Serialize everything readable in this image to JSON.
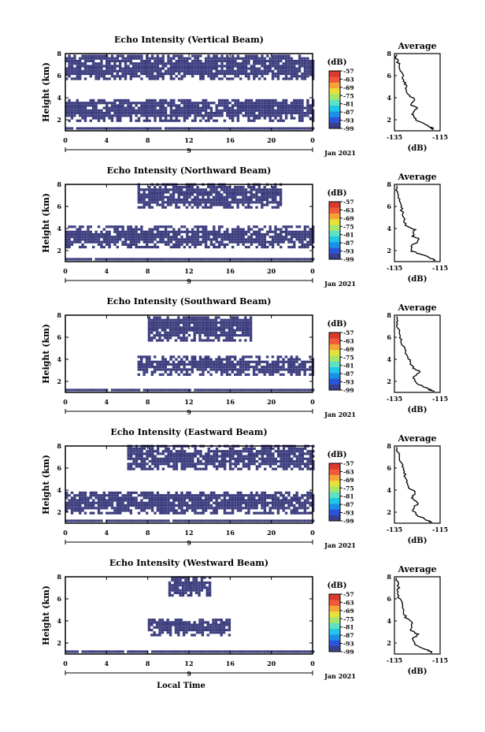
{
  "chart_data": {
    "type": "heatmap",
    "shared": {
      "x_ticks": [
        "0",
        "4",
        "8",
        "12",
        "16",
        "20",
        "0"
      ],
      "x_day_label": "9",
      "date_label": "Jan 2021",
      "xlabel": "Local Time",
      "ylabel": "Height (km)",
      "y_ticks": [
        "2",
        "4",
        "6",
        "8"
      ],
      "ylim": [
        1,
        8
      ],
      "colorbar_unit": "(dB)",
      "colorbar_ticks": [
        "-57",
        "-63",
        "-69",
        "-75",
        "-81",
        "-87",
        "-93",
        "-99"
      ],
      "avg_title": "Average",
      "avg_xlabel": "(dB)",
      "avg_x_ticks": [
        "-135",
        "-115"
      ],
      "avg_xlim": [
        -135,
        -115
      ],
      "avg_y_ticks": [
        "2",
        "4",
        "6",
        "8"
      ]
    },
    "panels": [
      {
        "title": "Echo Intensity (Vertical Beam)",
        "bands": [
          {
            "x0": 0,
            "x1": 24,
            "h0": 1.1,
            "h1": 1.3
          },
          {
            "x0": 0,
            "x1": 24,
            "h0": 1.8,
            "h1": 3.8
          },
          {
            "x0": 0,
            "x1": 24,
            "h0": 5.6,
            "h1": 7.9
          }
        ],
        "avg_profile": [
          [
            -118,
            1.1
          ],
          [
            -119,
            1.3
          ],
          [
            -122,
            1.6
          ],
          [
            -126,
            2.1
          ],
          [
            -127,
            2.6
          ],
          [
            -125,
            3.1
          ],
          [
            -128,
            3.4
          ],
          [
            -126,
            3.8
          ],
          [
            -129,
            4.3
          ],
          [
            -130,
            5.0
          ],
          [
            -131,
            5.6
          ],
          [
            -132,
            6.3
          ],
          [
            -133,
            7.0
          ],
          [
            -134,
            7.5
          ],
          [
            -134,
            7.9
          ]
        ]
      },
      {
        "title": "Echo Intensity (Northward Beam)",
        "bands": [
          {
            "x0": 0,
            "x1": 24,
            "h0": 1.1,
            "h1": 1.3
          },
          {
            "x0": 0,
            "x1": 24,
            "h0": 2.2,
            "h1": 4.1
          },
          {
            "x0": 7,
            "x1": 21,
            "h0": 5.8,
            "h1": 7.9
          }
        ],
        "avg_profile": [
          [
            -117,
            1.1
          ],
          [
            -119,
            1.3
          ],
          [
            -124,
            1.7
          ],
          [
            -128,
            2.0
          ],
          [
            -127,
            2.5
          ],
          [
            -124,
            3.0
          ],
          [
            -127,
            3.3
          ],
          [
            -126,
            3.9
          ],
          [
            -130,
            4.3
          ],
          [
            -131,
            5.0
          ],
          [
            -132,
            5.8
          ],
          [
            -133,
            6.5
          ],
          [
            -134,
            7.2
          ],
          [
            -134,
            7.9
          ]
        ]
      },
      {
        "title": "Echo Intensity (Southward Beam)",
        "bands": [
          {
            "x0": 0,
            "x1": 24,
            "h0": 1.1,
            "h1": 1.3
          },
          {
            "x0": 7,
            "x1": 24,
            "h0": 2.5,
            "h1": 4.2
          },
          {
            "x0": 8,
            "x1": 18,
            "h0": 5.6,
            "h1": 7.9
          }
        ],
        "avg_profile": [
          [
            -118,
            1.1
          ],
          [
            -120,
            1.3
          ],
          [
            -125,
            1.8
          ],
          [
            -127,
            2.3
          ],
          [
            -124,
            2.9
          ],
          [
            -127,
            3.2
          ],
          [
            -128,
            3.8
          ],
          [
            -130,
            4.4
          ],
          [
            -131,
            5.1
          ],
          [
            -132,
            5.8
          ],
          [
            -133,
            6.5
          ],
          [
            -134,
            7.2
          ],
          [
            -134,
            7.9
          ]
        ]
      },
      {
        "title": "Echo Intensity (Eastward Beam)",
        "bands": [
          {
            "x0": 0,
            "x1": 24,
            "h0": 1.1,
            "h1": 1.3
          },
          {
            "x0": 0,
            "x1": 24,
            "h0": 1.8,
            "h1": 3.8
          },
          {
            "x0": 6,
            "x1": 24,
            "h0": 5.8,
            "h1": 7.9
          }
        ],
        "avg_profile": [
          [
            -119,
            1.1
          ],
          [
            -121,
            1.3
          ],
          [
            -125,
            1.7
          ],
          [
            -127,
            2.2
          ],
          [
            -125,
            2.8
          ],
          [
            -127,
            3.3
          ],
          [
            -126,
            3.8
          ],
          [
            -129,
            4.3
          ],
          [
            -130,
            5.0
          ],
          [
            -131,
            5.7
          ],
          [
            -132,
            6.4
          ],
          [
            -133,
            7.1
          ],
          [
            -134,
            7.9
          ]
        ]
      },
      {
        "title": "Echo Intensity (Westward Beam)",
        "bands": [
          {
            "x0": 0,
            "x1": 24,
            "h0": 1.1,
            "h1": 1.3
          },
          {
            "x0": 8,
            "x1": 16,
            "h0": 2.6,
            "h1": 4.2
          },
          {
            "x0": 10,
            "x1": 14,
            "h0": 6.2,
            "h1": 7.9
          }
        ],
        "avg_profile": [
          [
            -118,
            1.1
          ],
          [
            -121,
            1.4
          ],
          [
            -126,
            1.8
          ],
          [
            -127,
            2.3
          ],
          [
            -125,
            2.8
          ],
          [
            -128,
            3.2
          ],
          [
            -127,
            3.7
          ],
          [
            -130,
            4.3
          ],
          [
            -131,
            5.0
          ],
          [
            -132,
            5.7
          ],
          [
            -134,
            6.4
          ],
          [
            -133,
            7.0
          ],
          [
            -134,
            7.9
          ]
        ]
      }
    ],
    "colors": {
      "fill": "#3c3d7e",
      "colorbar": [
        "#3b3f8f",
        "#2b54d8",
        "#1c8fe8",
        "#22c6e8",
        "#5ee0c2",
        "#a6e66a",
        "#e6e23a",
        "#f6a33a",
        "#ee5a3a",
        "#d93a2e"
      ]
    }
  }
}
